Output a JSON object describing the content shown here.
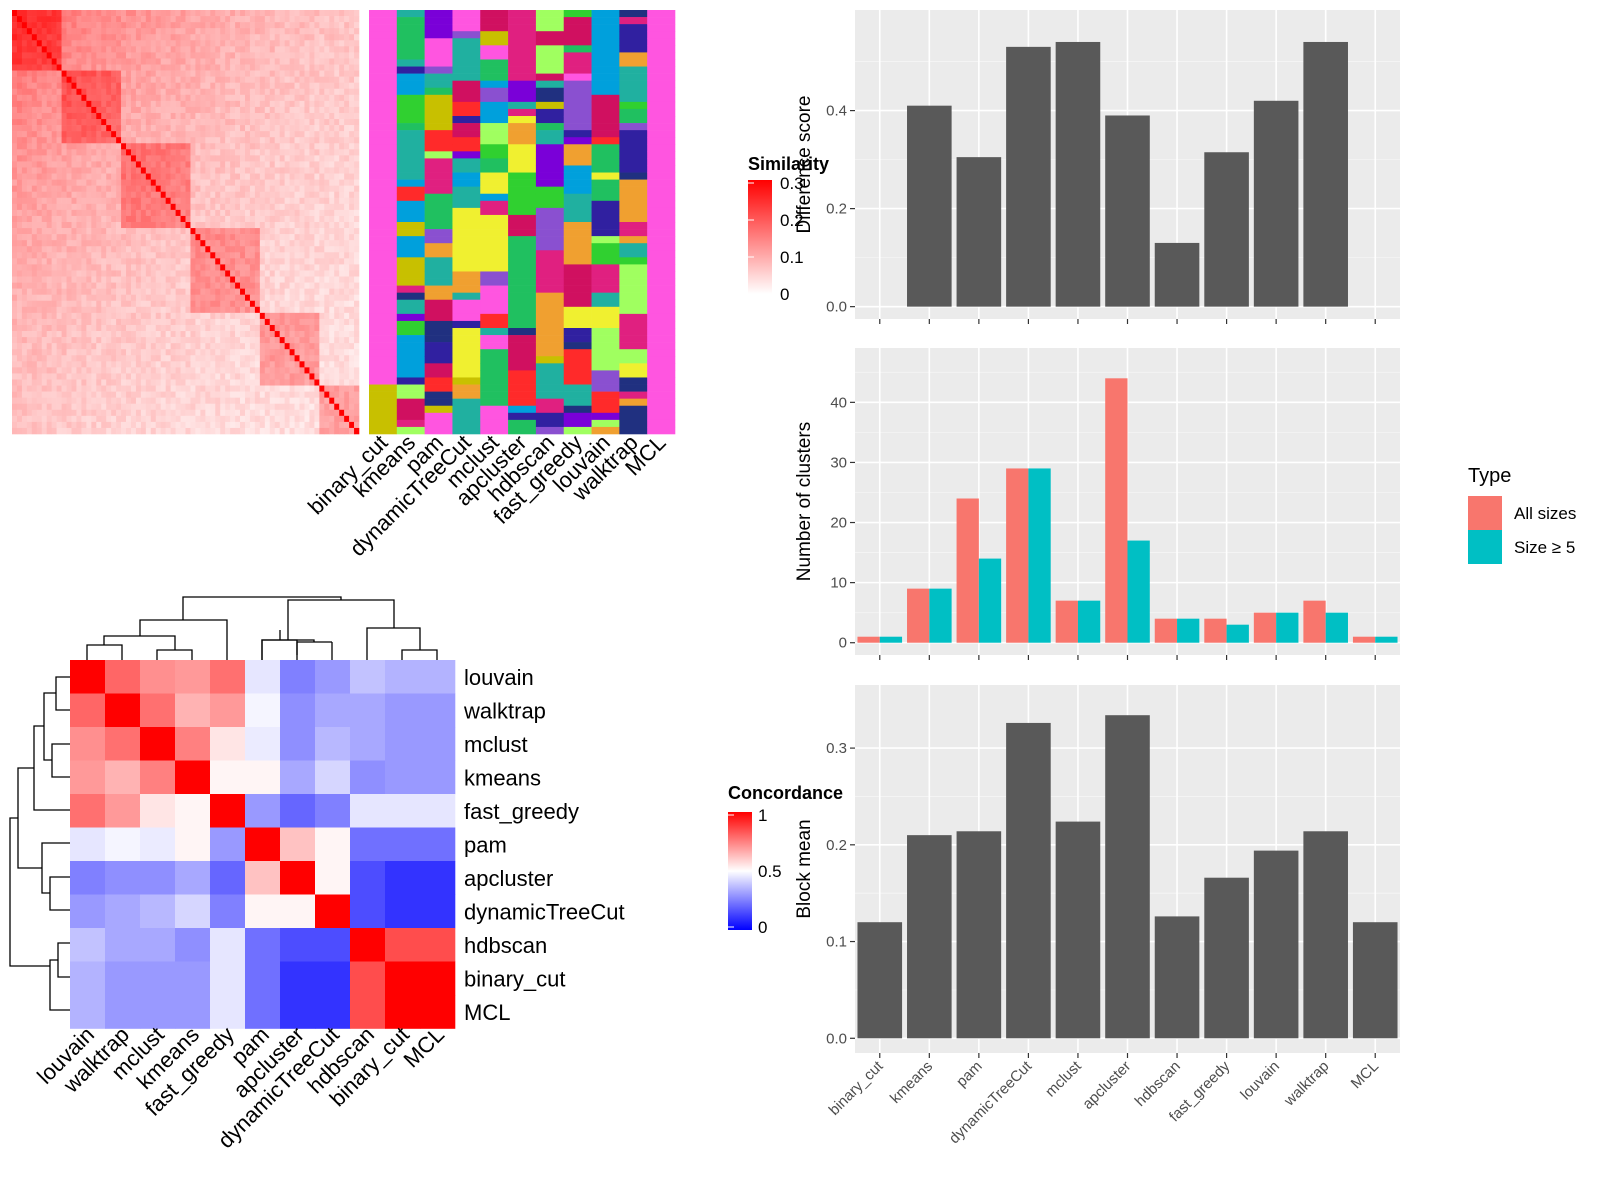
{
  "colors": {
    "bar_fill": "#595959",
    "panel_bg": "#ebebeb",
    "grid": "#ffffff",
    "all_sizes": "#F8766D",
    "size_ge5": "#00BFC4",
    "sim_high": "#ff0000",
    "conc_low": "#0000ff",
    "conc_mid": "#ffffff",
    "conc_high": "#ff0000",
    "membership_palette": [
      "#ff55e0",
      "#00a0dc",
      "#c8c000",
      "#ff2a2a",
      "#7a00d8",
      "#f0f030",
      "#30d030",
      "#203080",
      "#8a50d0",
      "#f0a030",
      "#e02080",
      "#20b0a0",
      "#3020a0",
      "#a0ff60",
      "#20c060",
      "#d01060"
    ]
  },
  "similarity_heatmap": {
    "legend_title": "Similarity",
    "legend_ticks": [
      "0.3",
      "0.2",
      "0.1",
      "0"
    ],
    "methods": [
      "binary_cut",
      "kmeans",
      "pam",
      "dynamicTreeCut",
      "mclust",
      "apcluster",
      "hdbscan",
      "fast_greedy",
      "louvain",
      "walktrap",
      "MCL"
    ]
  },
  "concordance_heatmap": {
    "legend_title": "Concordance",
    "legend_ticks": [
      "1",
      "0.5",
      "0"
    ],
    "row_labels": [
      "louvain",
      "walktrap",
      "mclust",
      "kmeans",
      "fast_greedy",
      "pam",
      "apcluster",
      "dynamicTreeCut",
      "hdbscan",
      "binary_cut",
      "MCL"
    ],
    "col_labels": [
      "louvain",
      "walktrap",
      "mclust",
      "kmeans",
      "fast_greedy",
      "pam",
      "apcluster",
      "dynamicTreeCut",
      "hdbscan",
      "binary_cut",
      "MCL"
    ],
    "matrix": [
      [
        1.0,
        0.8,
        0.72,
        0.7,
        0.78,
        0.45,
        0.25,
        0.3,
        0.38,
        0.35,
        0.35
      ],
      [
        0.8,
        1.0,
        0.78,
        0.65,
        0.7,
        0.48,
        0.28,
        0.33,
        0.33,
        0.3,
        0.3
      ],
      [
        0.72,
        0.78,
        1.0,
        0.75,
        0.55,
        0.46,
        0.28,
        0.36,
        0.33,
        0.3,
        0.3
      ],
      [
        0.7,
        0.65,
        0.75,
        1.0,
        0.52,
        0.52,
        0.33,
        0.42,
        0.28,
        0.3,
        0.3
      ],
      [
        0.78,
        0.7,
        0.55,
        0.52,
        1.0,
        0.3,
        0.2,
        0.25,
        0.45,
        0.45,
        0.45
      ],
      [
        0.45,
        0.48,
        0.46,
        0.52,
        0.3,
        1.0,
        0.62,
        0.52,
        0.22,
        0.22,
        0.22
      ],
      [
        0.25,
        0.28,
        0.28,
        0.33,
        0.2,
        0.62,
        1.0,
        0.52,
        0.15,
        0.1,
        0.1
      ],
      [
        0.3,
        0.33,
        0.36,
        0.42,
        0.25,
        0.52,
        0.52,
        1.0,
        0.15,
        0.1,
        0.1
      ],
      [
        0.38,
        0.33,
        0.33,
        0.28,
        0.45,
        0.22,
        0.15,
        0.15,
        1.0,
        0.85,
        0.85
      ],
      [
        0.35,
        0.3,
        0.3,
        0.3,
        0.45,
        0.22,
        0.1,
        0.1,
        0.85,
        1.0,
        1.0
      ],
      [
        0.35,
        0.3,
        0.3,
        0.3,
        0.45,
        0.22,
        0.1,
        0.1,
        0.85,
        1.0,
        1.0
      ]
    ]
  },
  "chart_data": [
    {
      "type": "bar",
      "categories": [
        "binary_cut",
        "kmeans",
        "pam",
        "dynamicTreeCut",
        "mclust",
        "apcluster",
        "hdbscan",
        "fast_greedy",
        "louvain",
        "walktrap",
        "MCL"
      ],
      "values": [
        0,
        0.41,
        0.305,
        0.53,
        0.54,
        0.39,
        0.13,
        0.315,
        0.42,
        0.54,
        0
      ],
      "ylabel": "Difference score",
      "ylim": [
        0,
        0.58
      ],
      "yticks": [
        0.0,
        0.2,
        0.4
      ],
      "ytick_labels": [
        "0.0",
        "0.2",
        "0.4"
      ]
    },
    {
      "type": "bar",
      "categories": [
        "binary_cut",
        "kmeans",
        "pam",
        "dynamicTreeCut",
        "mclust",
        "apcluster",
        "hdbscan",
        "fast_greedy",
        "louvain",
        "walktrap",
        "MCL"
      ],
      "series": [
        {
          "name": "All sizes",
          "values": [
            1,
            9,
            24,
            29,
            7,
            44,
            4,
            4,
            5,
            7,
            1
          ]
        },
        {
          "name": "Size ≥ 5",
          "values": [
            1,
            9,
            14,
            29,
            7,
            17,
            4,
            3,
            5,
            5,
            1
          ]
        }
      ],
      "ylabel": "Number of clusters",
      "legend_title": "Type",
      "ylim": [
        0,
        47
      ],
      "yticks": [
        0,
        10,
        20,
        30,
        40
      ],
      "ytick_labels": [
        "0",
        "10",
        "20",
        "30",
        "40"
      ]
    },
    {
      "type": "bar",
      "categories": [
        "binary_cut",
        "kmeans",
        "pam",
        "dynamicTreeCut",
        "mclust",
        "apcluster",
        "hdbscan",
        "fast_greedy",
        "louvain",
        "walktrap",
        "MCL"
      ],
      "values": [
        0.12,
        0.21,
        0.214,
        0.326,
        0.224,
        0.334,
        0.126,
        0.166,
        0.194,
        0.214,
        0.12
      ],
      "ylabel": "Block mean",
      "ylim": [
        0,
        0.35
      ],
      "yticks": [
        0.0,
        0.1,
        0.2,
        0.3
      ],
      "ytick_labels": [
        "0.0",
        "0.1",
        "0.2",
        "0.3"
      ]
    }
  ]
}
